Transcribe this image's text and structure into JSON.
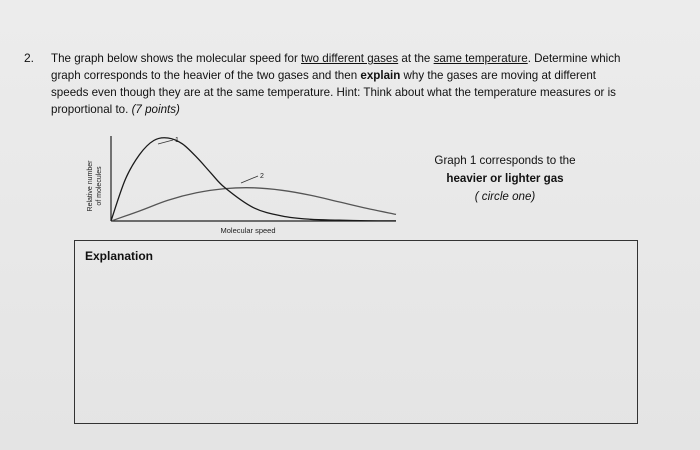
{
  "question": {
    "number": "2.",
    "line1_a": "The graph below shows the molecular speed for ",
    "line1_u1": "two different gases",
    "line1_b": " at the ",
    "line1_u2": "same temperature",
    "line1_c": ". Determine which",
    "line2_a": "graph corresponds to the heavier of the two gases and then ",
    "line2_bold": "explain",
    "line2_b": " why the gases are moving at different",
    "line3": "speeds even though they are at the same temperature.  Hint: Think about what the temperature measures or is",
    "line4_a": "proportional to. ",
    "line4_i": "(7 points)"
  },
  "chart_data": {
    "type": "line",
    "xlabel": "Molecular speed",
    "ylabel_line1": "Relative number",
    "ylabel_line2": "of molecules",
    "series": [
      {
        "name": "1",
        "x": [
          0,
          0.5,
          1,
          1.5,
          2,
          2.5,
          3,
          3.5,
          4,
          5,
          6,
          7,
          8,
          9,
          10
        ],
        "values": [
          0,
          0.5,
          0.8,
          0.97,
          1.0,
          0.93,
          0.77,
          0.58,
          0.4,
          0.16,
          0.06,
          0.02,
          0.01,
          0.003,
          0.001
        ]
      },
      {
        "name": "2",
        "x": [
          0,
          1,
          2,
          3,
          4,
          5,
          6,
          7,
          8,
          9,
          10
        ],
        "values": [
          0,
          0.12,
          0.25,
          0.34,
          0.39,
          0.4,
          0.37,
          0.31,
          0.23,
          0.15,
          0.08
        ]
      }
    ],
    "curve_labels": [
      "1",
      "2"
    ],
    "grid": false
  },
  "side": {
    "line1": "Graph 1 corresponds to the",
    "line2": "heavier or lighter gas",
    "line3": "( circle one)"
  },
  "explanation": {
    "label": "Explanation"
  },
  "colors": {
    "curve1": "#1a1a1a",
    "curve2": "#555555",
    "box_border": "#333333"
  }
}
